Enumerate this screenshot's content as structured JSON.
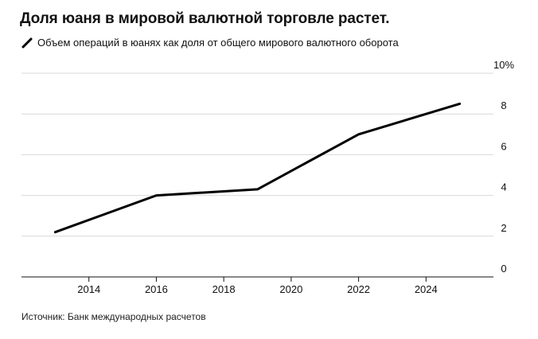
{
  "title": "Доля юаня в мировой валютной торговле растет.",
  "source": "Источник: Банк международных расчетов",
  "colors": {
    "line": "#000000",
    "grid": "#d9d9d9",
    "baseline": "#111111"
  },
  "chart_data": {
    "type": "line",
    "x": [
      2013,
      2016,
      2019,
      2022,
      2025
    ],
    "series": [
      {
        "name": "Объем операций в юанях как доля от общего мирового валютного оборота",
        "values": [
          2.2,
          4.0,
          4.3,
          7.0,
          8.5
        ]
      }
    ],
    "xticks": [
      2014,
      2016,
      2018,
      2020,
      2022,
      2024
    ],
    "yticks": [
      0,
      2,
      4,
      6,
      8,
      10
    ],
    "ytick_labels": [
      "0",
      "2",
      "4",
      "6",
      "8",
      "10%"
    ],
    "xlim": [
      2012,
      2026
    ],
    "ylim": [
      0,
      10
    ],
    "grid": true,
    "y_axis_side": "right",
    "legend_position": "top-left"
  }
}
